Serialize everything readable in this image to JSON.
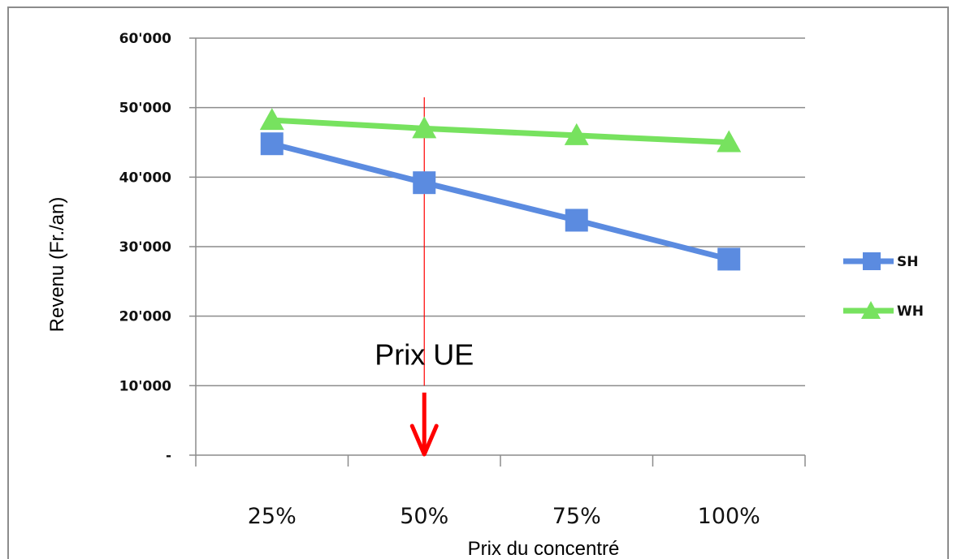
{
  "chart_data": {
    "type": "line",
    "title": "",
    "categories": [
      "25%",
      "50%",
      "75%",
      "100%"
    ],
    "xlabel": "Prix du concentré",
    "ylabel": "Revenu (Fr./an)",
    "ylim": [
      0,
      60000
    ],
    "y_ticks": [
      {
        "value": 0,
        "label": "-"
      },
      {
        "value": 10000,
        "label": "10'000"
      },
      {
        "value": 20000,
        "label": "20'000"
      },
      {
        "value": 30000,
        "label": "30'000"
      },
      {
        "value": 40000,
        "label": "40'000"
      },
      {
        "value": 50000,
        "label": "50'000"
      },
      {
        "value": 60000,
        "label": "60'000"
      }
    ],
    "grid": true,
    "legend_position": "right",
    "series": [
      {
        "name": "SH",
        "values": [
          44800,
          39200,
          33800,
          28200
        ],
        "color": "#5B8BE0",
        "marker": "square"
      },
      {
        "name": "WH",
        "values": [
          48200,
          47000,
          46000,
          45000
        ],
        "color": "#77E25F",
        "marker": "triangle"
      }
    ],
    "annotation": {
      "text": "Prix UE",
      "x_value": "50%",
      "line_color": "#FF0000"
    }
  }
}
